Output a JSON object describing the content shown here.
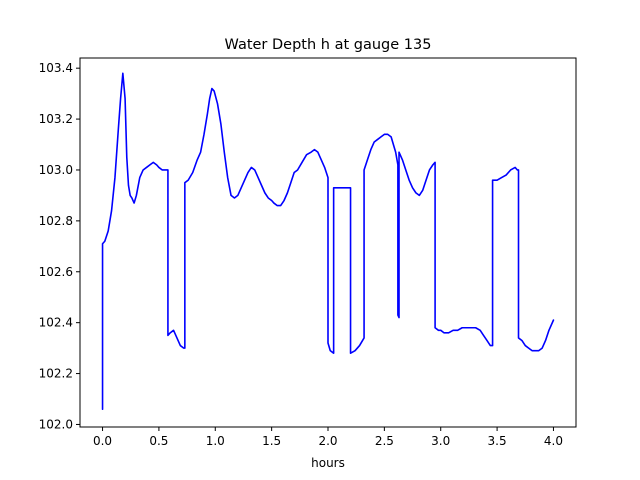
{
  "chart_data": {
    "type": "line",
    "title": "Water Depth h at gauge 135",
    "xlabel": "hours",
    "ylabel": "",
    "xlim": [
      -0.2,
      4.2
    ],
    "ylim": [
      101.99,
      103.44
    ],
    "xticks": [
      0.0,
      0.5,
      1.0,
      1.5,
      2.0,
      2.5,
      3.0,
      3.5,
      4.0
    ],
    "xtick_labels": [
      "0.0",
      "0.5",
      "1.0",
      "1.5",
      "2.0",
      "2.5",
      "3.0",
      "3.5",
      "4.0"
    ],
    "yticks": [
      102.0,
      102.2,
      102.4,
      102.6,
      102.8,
      103.0,
      103.2,
      103.4
    ],
    "ytick_labels": [
      "102.0",
      "102.2",
      "102.4",
      "102.6",
      "102.8",
      "103.0",
      "103.2",
      "103.4"
    ],
    "grid": false,
    "series": [
      {
        "color": "#0000ff",
        "x": [
          0.0,
          0.0,
          0.02,
          0.05,
          0.08,
          0.11,
          0.14,
          0.16,
          0.18,
          0.2,
          0.215,
          0.23,
          0.245,
          0.26,
          0.28,
          0.3,
          0.33,
          0.36,
          0.39,
          0.42,
          0.45,
          0.48,
          0.5,
          0.53,
          0.56,
          0.58,
          0.58,
          0.6,
          0.63,
          0.66,
          0.69,
          0.72,
          0.73,
          0.73,
          0.76,
          0.8,
          0.84,
          0.87,
          0.9,
          0.93,
          0.95,
          0.97,
          0.99,
          1.02,
          1.05,
          1.08,
          1.11,
          1.14,
          1.17,
          1.2,
          1.23,
          1.26,
          1.29,
          1.32,
          1.35,
          1.38,
          1.41,
          1.44,
          1.47,
          1.5,
          1.52,
          1.55,
          1.58,
          1.61,
          1.64,
          1.67,
          1.7,
          1.73,
          1.77,
          1.81,
          1.85,
          1.88,
          1.91,
          1.94,
          1.97,
          2.0,
          2.0,
          2.02,
          2.05,
          2.05,
          2.1,
          2.15,
          2.2,
          2.2,
          2.24,
          2.28,
          2.32,
          2.32,
          2.35,
          2.38,
          2.41,
          2.44,
          2.47,
          2.5,
          2.53,
          2.56,
          2.58,
          2.6,
          2.62,
          2.62,
          2.63,
          2.63,
          2.66,
          2.69,
          2.72,
          2.75,
          2.78,
          2.81,
          2.84,
          2.87,
          2.9,
          2.93,
          2.95,
          2.95,
          2.98,
          3.0,
          3.03,
          3.07,
          3.11,
          3.15,
          3.19,
          3.23,
          3.27,
          3.31,
          3.35,
          3.38,
          3.41,
          3.44,
          3.46,
          3.46,
          3.5,
          3.54,
          3.58,
          3.62,
          3.66,
          3.68,
          3.69,
          3.69,
          3.72,
          3.75,
          3.78,
          3.81,
          3.84,
          3.87,
          3.9,
          3.93,
          3.96,
          4.0
        ],
        "y": [
          102.06,
          102.71,
          102.72,
          102.76,
          102.84,
          102.97,
          103.16,
          103.28,
          103.38,
          103.28,
          103.05,
          102.94,
          102.9,
          102.89,
          102.87,
          102.9,
          102.97,
          103.0,
          103.01,
          103.02,
          103.03,
          103.02,
          103.01,
          103.0,
          103.0,
          103.0,
          102.35,
          102.36,
          102.37,
          102.34,
          102.31,
          102.3,
          102.3,
          102.95,
          102.96,
          102.99,
          103.04,
          103.07,
          103.14,
          103.22,
          103.28,
          103.32,
          103.31,
          103.26,
          103.18,
          103.07,
          102.97,
          102.9,
          102.89,
          102.9,
          102.93,
          102.96,
          102.99,
          103.01,
          103.0,
          102.97,
          102.94,
          102.91,
          102.89,
          102.88,
          102.87,
          102.86,
          102.86,
          102.88,
          102.91,
          102.95,
          102.99,
          103.0,
          103.03,
          103.06,
          103.07,
          103.08,
          103.07,
          103.04,
          103.01,
          102.97,
          102.32,
          102.29,
          102.28,
          102.93,
          102.93,
          102.93,
          102.93,
          102.28,
          102.29,
          102.31,
          102.34,
          103.0,
          103.04,
          103.08,
          103.11,
          103.12,
          103.13,
          103.14,
          103.14,
          103.13,
          103.1,
          103.07,
          103.02,
          102.43,
          102.42,
          103.07,
          103.04,
          103.0,
          102.96,
          102.93,
          102.91,
          102.9,
          102.92,
          102.96,
          103.0,
          103.02,
          103.03,
          102.38,
          102.37,
          102.37,
          102.36,
          102.36,
          102.37,
          102.37,
          102.38,
          102.38,
          102.38,
          102.38,
          102.37,
          102.35,
          102.33,
          102.31,
          102.31,
          102.96,
          102.96,
          102.97,
          102.98,
          103.0,
          103.01,
          103.0,
          103.0,
          102.34,
          102.33,
          102.31,
          102.3,
          102.29,
          102.29,
          102.29,
          102.3,
          102.33,
          102.37,
          102.41
        ]
      }
    ]
  }
}
